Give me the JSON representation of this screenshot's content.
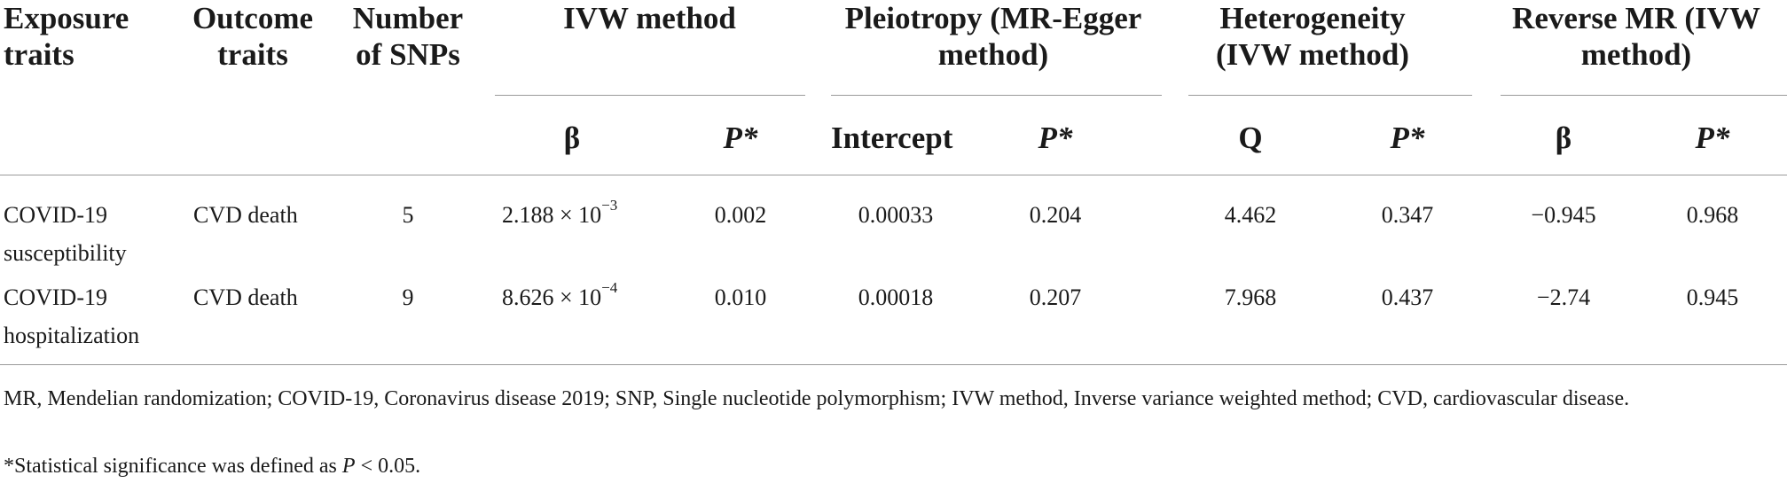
{
  "headers": {
    "exposure": "Exposure traits",
    "outcome": "Outcome traits",
    "num_snps": "Number of SNPs",
    "ivw": "IVW method",
    "pleiotropy": "Pleiotropy (MR-Egger method)",
    "heterogeneity": "Heterogeneity (IVW method)",
    "reverse_mr": "Reverse MR (IVW method)"
  },
  "subheaders": {
    "ivw_beta": "β",
    "ivw_p": "P*",
    "egger_intercept": "Intercept",
    "egger_p": "P*",
    "het_q": "Q",
    "het_p": "P*",
    "rev_beta": "β",
    "rev_p": "P*"
  },
  "rows": [
    {
      "exposure": "COVID-19 susceptibility",
      "outcome": "CVD death",
      "snps": "5",
      "ivw_beta_mantissa": "2.188 × 10",
      "ivw_beta_exp": "−3",
      "ivw_p": "0.002",
      "egger_intercept": "0.00033",
      "egger_p": "0.204",
      "het_q": "4.462",
      "het_p": "0.347",
      "rev_beta": "−0.945",
      "rev_p": "0.968"
    },
    {
      "exposure": "COVID-19 hospitalization",
      "outcome": "CVD death",
      "snps": "9",
      "ivw_beta_mantissa": "8.626 × 10",
      "ivw_beta_exp": "−4",
      "ivw_p": "0.010",
      "egger_intercept": "0.00018",
      "egger_p": "0.207",
      "het_q": "7.968",
      "het_p": "0.437",
      "rev_beta": "−2.74",
      "rev_p": "0.945"
    }
  ],
  "footnotes": {
    "abbreviations": "MR, Mendelian randomization; COVID-19, Coronavirus disease 2019; SNP, Single nucleotide polymorphism; IVW method, Inverse variance weighted method; CVD, cardiovascular disease.",
    "significance_prefix": "*Statistical significance was defined as ",
    "significance_var": "P",
    "significance_suffix": " < 0.05."
  }
}
